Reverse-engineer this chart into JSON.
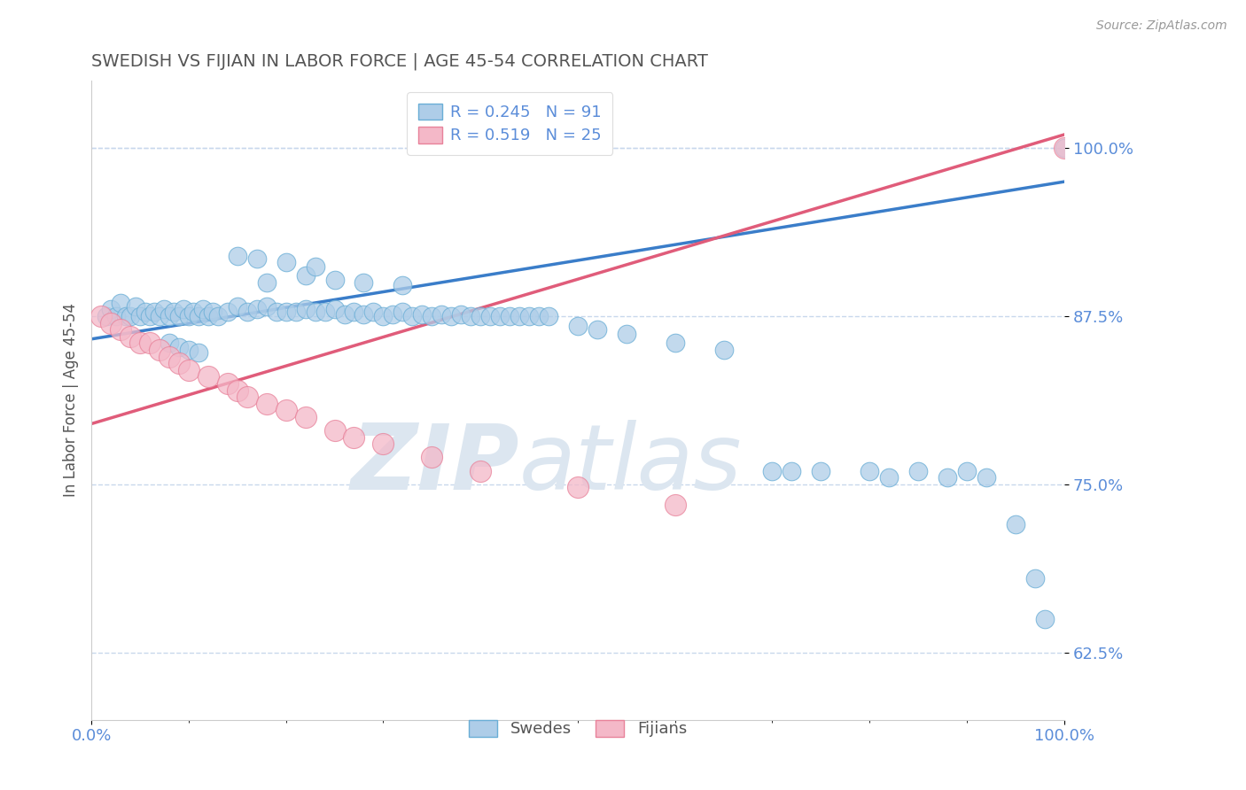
{
  "title": "SWEDISH VS FIJIAN IN LABOR FORCE | AGE 45-54 CORRELATION CHART",
  "source_text": "Source: ZipAtlas.com",
  "ylabel": "In Labor Force | Age 45-54",
  "xlim": [
    0.0,
    1.0
  ],
  "ylim": [
    0.575,
    1.05
  ],
  "yticks": [
    0.625,
    0.75,
    0.875,
    1.0
  ],
  "yticklabels": [
    "62.5%",
    "75.0%",
    "87.5%",
    "100.0%"
  ],
  "legend_blue_label": "Swedes",
  "legend_pink_label": "Fijians",
  "R_blue": 0.245,
  "N_blue": 91,
  "R_pink": 0.519,
  "N_pink": 25,
  "blue_color": "#aecde8",
  "blue_edge_color": "#6aaed6",
  "blue_line_color": "#3a7dc9",
  "pink_color": "#f4b8c8",
  "pink_edge_color": "#e8829a",
  "pink_line_color": "#e05c7a",
  "title_color": "#555555",
  "axis_label_color": "#555555",
  "tick_color": "#5b8dd9",
  "grid_color": "#c8d8ec",
  "watermark_color": "#dce6f0",
  "blue_line_x0": 0.0,
  "blue_line_y0": 0.858,
  "blue_line_x1": 1.0,
  "blue_line_y1": 0.975,
  "pink_line_x0": 0.0,
  "pink_line_y0": 0.795,
  "pink_line_x1": 1.0,
  "pink_line_y1": 1.01,
  "blue_scatter_x": [
    0.015,
    0.02,
    0.025,
    0.03,
    0.035,
    0.04,
    0.045,
    0.05,
    0.055,
    0.06,
    0.065,
    0.07,
    0.075,
    0.08,
    0.085,
    0.09,
    0.095,
    0.1,
    0.105,
    0.11,
    0.115,
    0.12,
    0.125,
    0.13,
    0.14,
    0.15,
    0.16,
    0.17,
    0.18,
    0.19,
    0.2,
    0.21,
    0.22,
    0.23,
    0.24,
    0.25,
    0.26,
    0.27,
    0.28,
    0.29,
    0.3,
    0.31,
    0.32,
    0.33,
    0.34,
    0.35,
    0.36,
    0.37,
    0.38,
    0.39,
    0.4,
    0.41,
    0.42,
    0.43,
    0.44,
    0.45,
    0.46,
    0.47,
    0.18,
    0.22,
    0.25,
    0.28,
    0.32,
    0.15,
    0.17,
    0.2,
    0.23,
    0.5,
    0.52,
    0.55,
    0.6,
    0.65,
    0.7,
    0.72,
    0.75,
    0.8,
    0.82,
    0.85,
    0.88,
    0.9,
    0.92,
    0.95,
    0.97,
    0.98,
    1.0,
    0.08,
    0.09,
    0.1,
    0.11
  ],
  "blue_scatter_y": [
    0.875,
    0.88,
    0.875,
    0.885,
    0.875,
    0.875,
    0.882,
    0.875,
    0.878,
    0.875,
    0.878,
    0.875,
    0.88,
    0.875,
    0.878,
    0.875,
    0.88,
    0.875,
    0.878,
    0.875,
    0.88,
    0.875,
    0.878,
    0.875,
    0.878,
    0.882,
    0.878,
    0.88,
    0.882,
    0.878,
    0.878,
    0.878,
    0.88,
    0.878,
    0.878,
    0.88,
    0.876,
    0.878,
    0.876,
    0.878,
    0.875,
    0.876,
    0.878,
    0.875,
    0.876,
    0.875,
    0.876,
    0.875,
    0.876,
    0.875,
    0.875,
    0.875,
    0.875,
    0.875,
    0.875,
    0.875,
    0.875,
    0.875,
    0.9,
    0.905,
    0.902,
    0.9,
    0.898,
    0.92,
    0.918,
    0.915,
    0.912,
    0.868,
    0.865,
    0.862,
    0.855,
    0.85,
    0.76,
    0.76,
    0.76,
    0.76,
    0.755,
    0.76,
    0.755,
    0.76,
    0.755,
    0.72,
    0.68,
    0.65,
    1.0,
    0.855,
    0.852,
    0.85,
    0.848
  ],
  "pink_scatter_x": [
    0.01,
    0.02,
    0.03,
    0.04,
    0.05,
    0.06,
    0.07,
    0.08,
    0.09,
    0.1,
    0.12,
    0.14,
    0.15,
    0.16,
    0.18,
    0.2,
    0.22,
    0.25,
    0.27,
    0.3,
    0.35,
    0.4,
    0.5,
    0.6,
    1.0
  ],
  "pink_scatter_y": [
    0.875,
    0.87,
    0.865,
    0.86,
    0.855,
    0.855,
    0.85,
    0.845,
    0.84,
    0.835,
    0.83,
    0.825,
    0.82,
    0.815,
    0.81,
    0.805,
    0.8,
    0.79,
    0.785,
    0.78,
    0.77,
    0.76,
    0.748,
    0.735,
    1.0
  ]
}
